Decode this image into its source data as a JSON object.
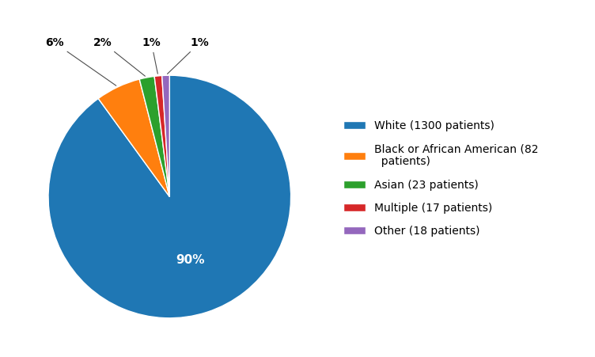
{
  "chart_data": {
    "type": "pie",
    "categories": [
      "White (1300 patients)",
      "Black or African American (82\n  patients)",
      "Asian (23 patients)",
      "Multiple (17 patients)",
      "Other (18 patients)"
    ],
    "values": [
      90,
      6,
      2,
      1,
      1
    ],
    "value_labels": [
      "90%",
      "6%",
      "2%",
      "1%",
      "1%"
    ],
    "data_labels": true,
    "legend": "center left"
  }
}
